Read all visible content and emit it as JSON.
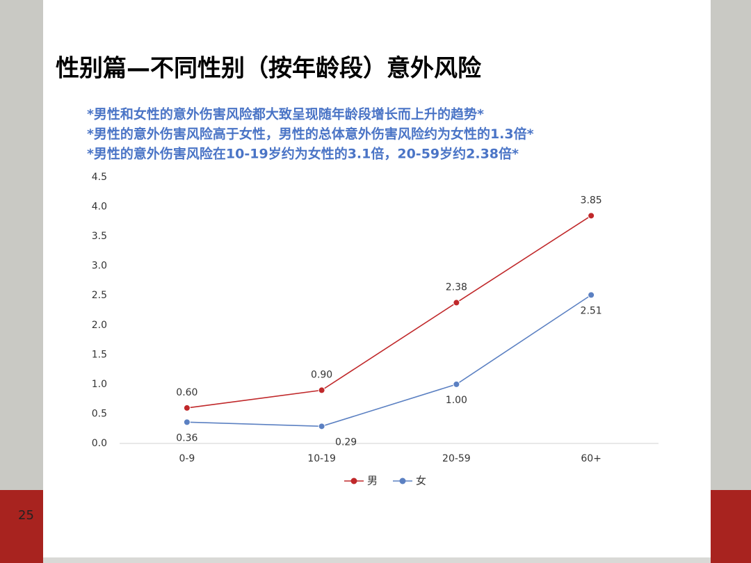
{
  "page_number": "25",
  "chart_data": {
    "type": "line",
    "title": "性别篇—不同性别（按年龄段）意外风险",
    "annotations": [
      "*男性和女性的意外伤害风险都大致呈现随年龄段增长而上升的趋势*",
      "*男性的意外伤害风险高于女性，男性的总体意外伤害风险约为女性的1.3倍*",
      "*男性的意外伤害风险在10-19岁约为女性的3.1倍，20-59岁约2.38倍*"
    ],
    "categories": [
      "0-9",
      "10-19",
      "20-59",
      "60+"
    ],
    "series": [
      {
        "name": "男",
        "color": "#c0282a",
        "values": [
          0.6,
          0.9,
          2.38,
          3.85
        ],
        "value_labels": [
          "0.60",
          "0.90",
          "2.38",
          "3.85"
        ]
      },
      {
        "name": "女",
        "color": "#5b80c2",
        "values": [
          0.36,
          0.29,
          1,
          2.51
        ],
        "value_labels": [
          "0.36",
          "0.29",
          "1.00",
          "2.51"
        ]
      }
    ],
    "ylim": [
      0,
      4.5
    ],
    "yticks": [
      {
        "value": 0,
        "label": "0.0"
      },
      0.5,
      {
        "value": 1,
        "label": "1.0"
      },
      1.5,
      {
        "value": 2,
        "label": "2.0"
      },
      2.5,
      {
        "value": 3,
        "label": "3.0"
      },
      3.5,
      {
        "value": 4,
        "label": "4.0"
      },
      4.5
    ],
    "grid": false,
    "legend": "bottom"
  }
}
